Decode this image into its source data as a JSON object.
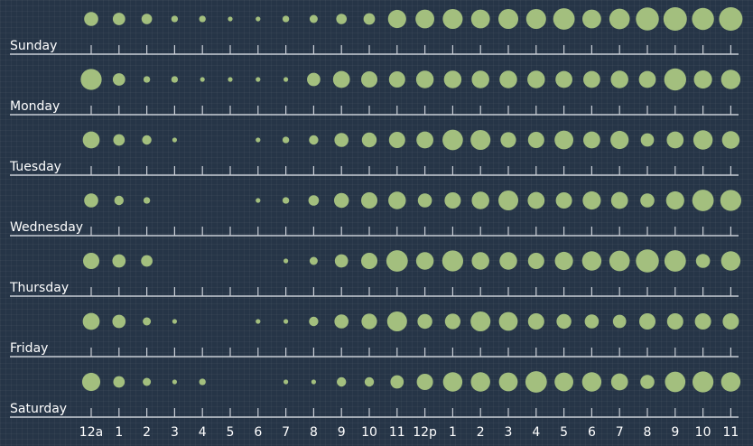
{
  "chart_data": {
    "type": "scatter",
    "title": "",
    "xlabel": "",
    "ylabel": "",
    "hours": [
      "12a",
      "1",
      "2",
      "3",
      "4",
      "5",
      "6",
      "7",
      "8",
      "9",
      "10",
      "11",
      "12p",
      "1",
      "2",
      "3",
      "4",
      "5",
      "6",
      "7",
      "8",
      "9",
      "10",
      "11"
    ],
    "days": [
      "Sunday",
      "Monday",
      "Tuesday",
      "Wednesday",
      "Thursday",
      "Friday",
      "Saturday"
    ],
    "series": [
      {
        "name": "Sunday",
        "values": [
          9,
          7,
          5,
          2,
          2,
          1,
          1,
          2,
          3,
          5,
          6,
          15,
          16,
          18,
          16,
          18,
          18,
          21,
          16,
          19,
          24,
          25,
          22,
          25
        ]
      },
      {
        "name": "Monday",
        "values": [
          20,
          7,
          2,
          2,
          1,
          1,
          1,
          1,
          8,
          13,
          12,
          12,
          14,
          14,
          14,
          14,
          14,
          13,
          13,
          14,
          13,
          22,
          15,
          17
        ]
      },
      {
        "name": "Tuesday",
        "values": [
          13,
          6,
          4,
          1,
          0,
          0,
          1,
          2,
          4,
          9,
          10,
          12,
          13,
          19,
          18,
          11,
          12,
          16,
          13,
          15,
          8,
          13,
          17,
          14
        ]
      },
      {
        "name": "Wednesday",
        "values": [
          9,
          4,
          2,
          0,
          0,
          0,
          1,
          2,
          5,
          10,
          12,
          14,
          9,
          12,
          14,
          18,
          13,
          12,
          15,
          13,
          9,
          15,
          21,
          20
        ]
      },
      {
        "name": "Thursday",
        "values": [
          12,
          8,
          6,
          0,
          0,
          0,
          0,
          1,
          3,
          8,
          12,
          21,
          14,
          20,
          14,
          14,
          12,
          15,
          17,
          19,
          24,
          21,
          9,
          17
        ]
      },
      {
        "name": "Friday",
        "values": [
          13,
          8,
          3,
          1,
          0,
          0,
          1,
          1,
          4,
          9,
          11,
          18,
          10,
          11,
          18,
          16,
          12,
          10,
          9,
          8,
          12,
          12,
          12,
          12
        ]
      },
      {
        "name": "Saturday",
        "values": [
          15,
          6,
          3,
          1,
          2,
          0,
          0,
          1,
          1,
          4,
          4,
          8,
          12,
          17,
          17,
          16,
          21,
          16,
          17,
          13,
          9,
          19,
          20,
          17
        ]
      }
    ],
    "size_max": 25,
    "colors": {
      "dot": "#a3bf7e",
      "axis": "#c9ced6",
      "background": "#263547",
      "text": "#ffffff"
    },
    "grid": false,
    "legend": "none"
  }
}
